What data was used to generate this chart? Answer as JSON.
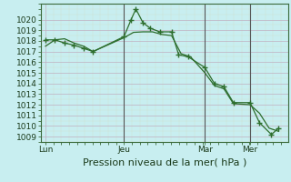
{
  "title": "Pression niveau de la mer( hPa )",
  "bg_color": "#c8eef0",
  "grid_major_color": "#c8c8d8",
  "grid_minor_color": "#d8e8e8",
  "line_color": "#2d6e2d",
  "marker_color": "#2d6e2d",
  "vline_color": "#555555",
  "ylim": [
    1008.5,
    1021.5
  ],
  "yticks": [
    1009,
    1010,
    1011,
    1012,
    1013,
    1014,
    1015,
    1016,
    1017,
    1018,
    1019,
    1020
  ],
  "xtick_labels": [
    "Lun",
    "Jeu",
    "Mar",
    "Mer"
  ],
  "xtick_positions": [
    0.0,
    0.33,
    0.67,
    0.86
  ],
  "xlim": [
    -0.02,
    1.02
  ],
  "vline_positions": [
    0.33,
    0.67,
    0.86
  ],
  "series1_x": [
    0.0,
    0.04,
    0.08,
    0.12,
    0.16,
    0.2,
    0.33,
    0.37,
    0.41,
    0.45,
    0.49,
    0.53,
    0.57,
    0.61,
    0.67,
    0.71,
    0.75,
    0.79,
    0.86,
    0.9,
    0.94,
    0.98
  ],
  "series1_y": [
    1017.5,
    1018.1,
    1018.2,
    1017.8,
    1017.5,
    1017.0,
    1018.3,
    1018.8,
    1018.85,
    1018.85,
    1018.6,
    1018.5,
    1016.8,
    1016.5,
    1015.0,
    1013.8,
    1013.5,
    1012.1,
    1012.0,
    1011.2,
    1009.8,
    1009.5
  ],
  "series2_x": [
    0.0,
    0.04,
    0.08,
    0.12,
    0.16,
    0.2,
    0.33,
    0.36,
    0.38,
    0.41,
    0.44,
    0.48,
    0.53,
    0.56,
    0.6,
    0.67,
    0.71,
    0.75,
    0.79,
    0.86,
    0.9,
    0.95,
    0.98
  ],
  "series2_y": [
    1018.1,
    1018.1,
    1017.8,
    1017.6,
    1017.3,
    1017.0,
    1018.4,
    1020.0,
    1021.0,
    1019.7,
    1019.2,
    1018.85,
    1018.85,
    1016.7,
    1016.5,
    1015.5,
    1014.0,
    1013.7,
    1012.2,
    1012.2,
    1010.3,
    1009.2,
    1009.8
  ],
  "title_fontsize": 8,
  "tick_fontsize": 6.5
}
